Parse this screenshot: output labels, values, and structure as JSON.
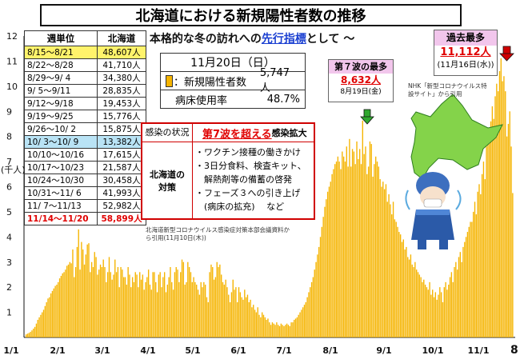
{
  "title": "北海道における新規陽性者数の推移",
  "subtitle_pre": "～ 本格的な冬の訪れへの",
  "subtitle_hl": "先行指標",
  "subtitle_post": "として ～",
  "colors": {
    "bar": "#f5b400",
    "yellow_row": "#fff36b",
    "blue_row": "#b9e3f5",
    "red": "#e00000",
    "badge_pink": "#f2c6ec",
    "arrow": "#2fa82f"
  },
  "weekly_table": {
    "header": [
      "週単位",
      "北海道"
    ],
    "rows": [
      {
        "week": "8/15～8/21",
        "value": "48,607人",
        "style": "yellow"
      },
      {
        "week": "8/22～8/28",
        "value": "41,710人",
        "style": ""
      },
      {
        "week": "8/29～9/ 4",
        "value": "34,380人",
        "style": ""
      },
      {
        "week": "9/ 5～9/11",
        "value": "28,835人",
        "style": ""
      },
      {
        "week": "9/12～9/18",
        "value": "19,453人",
        "style": ""
      },
      {
        "week": "9/19～9/25",
        "value": "15,776人",
        "style": ""
      },
      {
        "week": "9/26～10/ 2",
        "value": "15,875人",
        "style": ""
      },
      {
        "week": "10/ 3～10/ 9",
        "value": "13,382人",
        "style": "blue"
      },
      {
        "week": "10/10～10/16",
        "value": "17,615人",
        "style": ""
      },
      {
        "week": "10/17～10/23",
        "value": "21,587人",
        "style": ""
      },
      {
        "week": "10/24～10/30",
        "value": "30,458人",
        "style": ""
      },
      {
        "week": "10/31～11/ 6",
        "value": "41,993人",
        "style": ""
      },
      {
        "week": "11/ 7～11/13",
        "value": "52,982人",
        "style": ""
      },
      {
        "week": "11/14～11/20",
        "value": "58,899人",
        "style": "red"
      }
    ]
  },
  "date_box": {
    "date": "11月20日（日）",
    "new_label": "：新規陽性者数",
    "new_value": "5,747人",
    "bed_label": "病床使用率",
    "bed_value": "48.7%"
  },
  "status_box": {
    "situation_label": "感染の状況",
    "situation_hl": "第7波を超える",
    "situation_post": "感染拡大",
    "measures_label": "北海道の対策",
    "measures": [
      "・ワクチン接種の働きかけ",
      "・3日分食料、検査キット、",
      "　解熱剤等の備蓄の啓発",
      "・フェーズ３への引き上げ",
      "　(病床の拡充)　 など"
    ]
  },
  "source_notes": {
    "meeting": "北海道新型コロナウイルス感染症対策本部会議資料から引用(11月10日(木))",
    "nhk": "NHK「新型コロナウイルス特設サイト」から引用"
  },
  "peak7": {
    "label": "第７波の最多",
    "value": "8,632人",
    "date": "8月19日(金)"
  },
  "peak_past": {
    "label": "過去最多",
    "value": "11,112人",
    "date": "(11月16日(水))"
  },
  "chart_data": {
    "type": "bar",
    "ylabel": "(千人)",
    "ylim": [
      0,
      12
    ],
    "yticks": [
      1,
      2,
      3,
      4,
      5,
      6,
      7,
      8,
      9,
      10,
      11,
      12
    ],
    "xticks": [
      "1/1",
      "2/1",
      "3/1",
      "4/1",
      "5/1",
      "6/1",
      "7/1",
      "8/1",
      "9/1",
      "10/1",
      "11/1"
    ],
    "x_end_label": "8",
    "series": [
      {
        "values": [
          0.12,
          0.15,
          0.18,
          0.22,
          0.28,
          0.35,
          0.42,
          0.55,
          0.7,
          0.8,
          0.9,
          1.0,
          1.1,
          1.25,
          1.4,
          1.55,
          1.6,
          1.75,
          1.85,
          1.95,
          2.05,
          2.1,
          2.2,
          2.35,
          2.45,
          2.55,
          2.6,
          2.7,
          2.85,
          2.9,
          3.0,
          2.95,
          3.5,
          2.4,
          2.8,
          3.6,
          4.3,
          2.7,
          3.8,
          3.5,
          2.9,
          3.3,
          3.7,
          3.75,
          2.6,
          3.0,
          2.8,
          3.4,
          3.2,
          2.5,
          2.7,
          2.9,
          2.8,
          3.1,
          2.8,
          2.2,
          2.6,
          3.2,
          2.6,
          2.3,
          2.5,
          3.1,
          2.6,
          2.8,
          2.0,
          2.8,
          2.7,
          2.4,
          2.4,
          2.1,
          2.8,
          2.5,
          2.0,
          2.4,
          2.2,
          2.6,
          2.5,
          2.0,
          2.6,
          2.3,
          2.5,
          1.9,
          2.2,
          2.4,
          2.7,
          2.1,
          1.9,
          2.6,
          2.6,
          2.2,
          1.8,
          2.5,
          2.6,
          2.0,
          2.4,
          2.6,
          1.8,
          2.1,
          2.4,
          2.8,
          2.2,
          1.9,
          2.6,
          2.8,
          2.7,
          2.2,
          2.6,
          3.1,
          3.0,
          2.1,
          2.2,
          3.0,
          2.8,
          2.6,
          2.2,
          2.4,
          2.2,
          2.1,
          1.9,
          1.7,
          2.2,
          2.0,
          2.2,
          2.1,
          1.6,
          1.4,
          2.6,
          2.9,
          2.8,
          2.3,
          2.4,
          3.0,
          2.8,
          2.9,
          2.5,
          2.2,
          2.1,
          2.3,
          2.0,
          1.7,
          1.4,
          1.8,
          2.3,
          1.9,
          2.0,
          1.4,
          2.0,
          1.8,
          1.6,
          1.5,
          1.9,
          1.6,
          1.7,
          1.4,
          1.5,
          1.2,
          1.3,
          1.1,
          1.0,
          1.2,
          0.9,
          0.8,
          1.0,
          0.9,
          0.8,
          0.7,
          0.75,
          0.6,
          0.5,
          0.6,
          0.55,
          0.5,
          0.6,
          0.5,
          0.45,
          0.55,
          0.5,
          0.45,
          0.5,
          0.55,
          0.5,
          0.45,
          0.6,
          0.6,
          0.7,
          0.75,
          0.8,
          0.9,
          1.0,
          1.1,
          1.2,
          1.3,
          1.4,
          1.6,
          1.8,
          2.0,
          2.2,
          2.4,
          2.7,
          3.0,
          3.3,
          3.6,
          4.0,
          4.4,
          4.8,
          5.2,
          5.5,
          5.8,
          6.0,
          6.2,
          6.5,
          6.7,
          6.9,
          7.0,
          7.2,
          7.0,
          6.7,
          7.4,
          7.2,
          7.0,
          7.6,
          6.8,
          7.9,
          6.8,
          7.5,
          7.4,
          6.9,
          7.8,
          7.1,
          7.5,
          6.9,
          8.632,
          7.3,
          7.6,
          6.5,
          6.8,
          7.8,
          7.7,
          6.4,
          6.9,
          7.2,
          7.0,
          6.8,
          6.3,
          6.0,
          6.2,
          5.9,
          6.1,
          5.4,
          5.7,
          5.3,
          4.9,
          5.4,
          4.7,
          4.6,
          4.4,
          4.2,
          4.1,
          3.8,
          3.9,
          3.5,
          3.6,
          3.2,
          3.1,
          3.3,
          2.9,
          2.8,
          3.0,
          2.7,
          2.6,
          2.5,
          2.4,
          2.2,
          2.3,
          2.1,
          2.0,
          1.9,
          2.2,
          1.7,
          1.9,
          1.6,
          1.8,
          1.5,
          1.7,
          2.0,
          1.8,
          1.4,
          2.0,
          2.2,
          1.9,
          2.1,
          2.4,
          2.6,
          2.2,
          2.8,
          3.0,
          2.7,
          3.2,
          3.4,
          3.0,
          3.6,
          3.8,
          4.0,
          4.2,
          4.4,
          4.6,
          4.6,
          5.0,
          5.4,
          4.9,
          5.8,
          6.1,
          5.7,
          6.5,
          7.0,
          6.3,
          7.6,
          8.2,
          7.8,
          8.6,
          9.2,
          8.7,
          9.6,
          10.1,
          9.8,
          10.6,
          11.112,
          10.2,
          10.4,
          9.8,
          8.0,
          8.5,
          9.0,
          7.6,
          5.747
        ]
      }
    ],
    "annotations": [
      {
        "text": "第７波の最多 8,632人",
        "x": "8/19"
      },
      {
        "text": "過去最多 11,112人",
        "x": "11/16"
      }
    ]
  }
}
